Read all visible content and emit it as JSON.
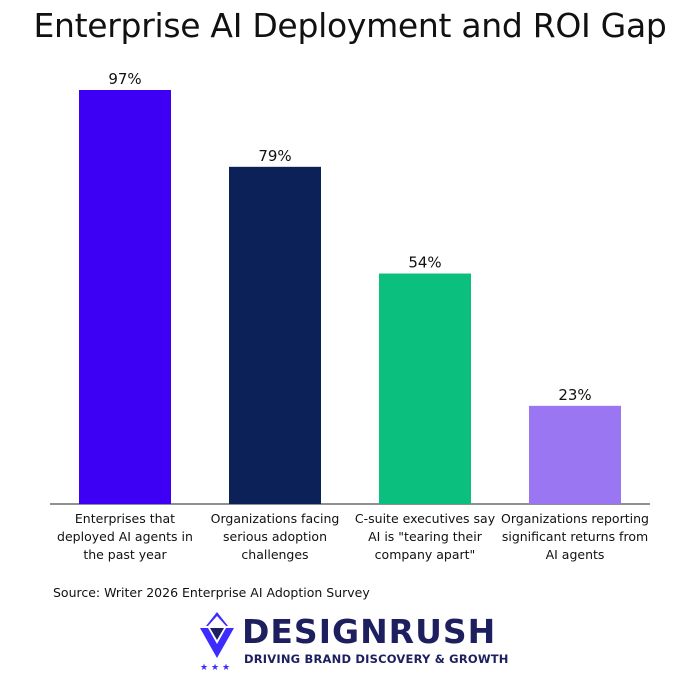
{
  "chart_data": {
    "type": "bar",
    "title": "Enterprise AI Deployment and ROI Gap",
    "categories": [
      [
        "Enterprises that",
        "deployed AI agents in",
        "the past year"
      ],
      [
        "Organizations facing",
        "serious adoption",
        "challenges"
      ],
      [
        "C-suite executives say",
        "AI is \"tearing their",
        "company apart\""
      ],
      [
        "Organizations reporting",
        "significant returns from",
        "AI agents"
      ]
    ],
    "values": [
      97,
      79,
      54,
      23
    ],
    "value_labels": [
      "97%",
      "79%",
      "54%",
      "23%"
    ],
    "colors": [
      "#3d00f5",
      "#0b2158",
      "#0bbf7e",
      "#9a76f2"
    ],
    "ylim": [
      0,
      100
    ],
    "grid": false,
    "xlabel": "",
    "ylabel": ""
  },
  "source": "Source: Writer 2026 Enterprise AI Adoption Survey",
  "logo": {
    "name": "DESIGNRUSH",
    "tagline": "DRIVING BRAND DISCOVERY & GROWTH",
    "icon": "designrush-logo-icon",
    "color": "#1d1f5e",
    "accent": "#3d2cff"
  }
}
